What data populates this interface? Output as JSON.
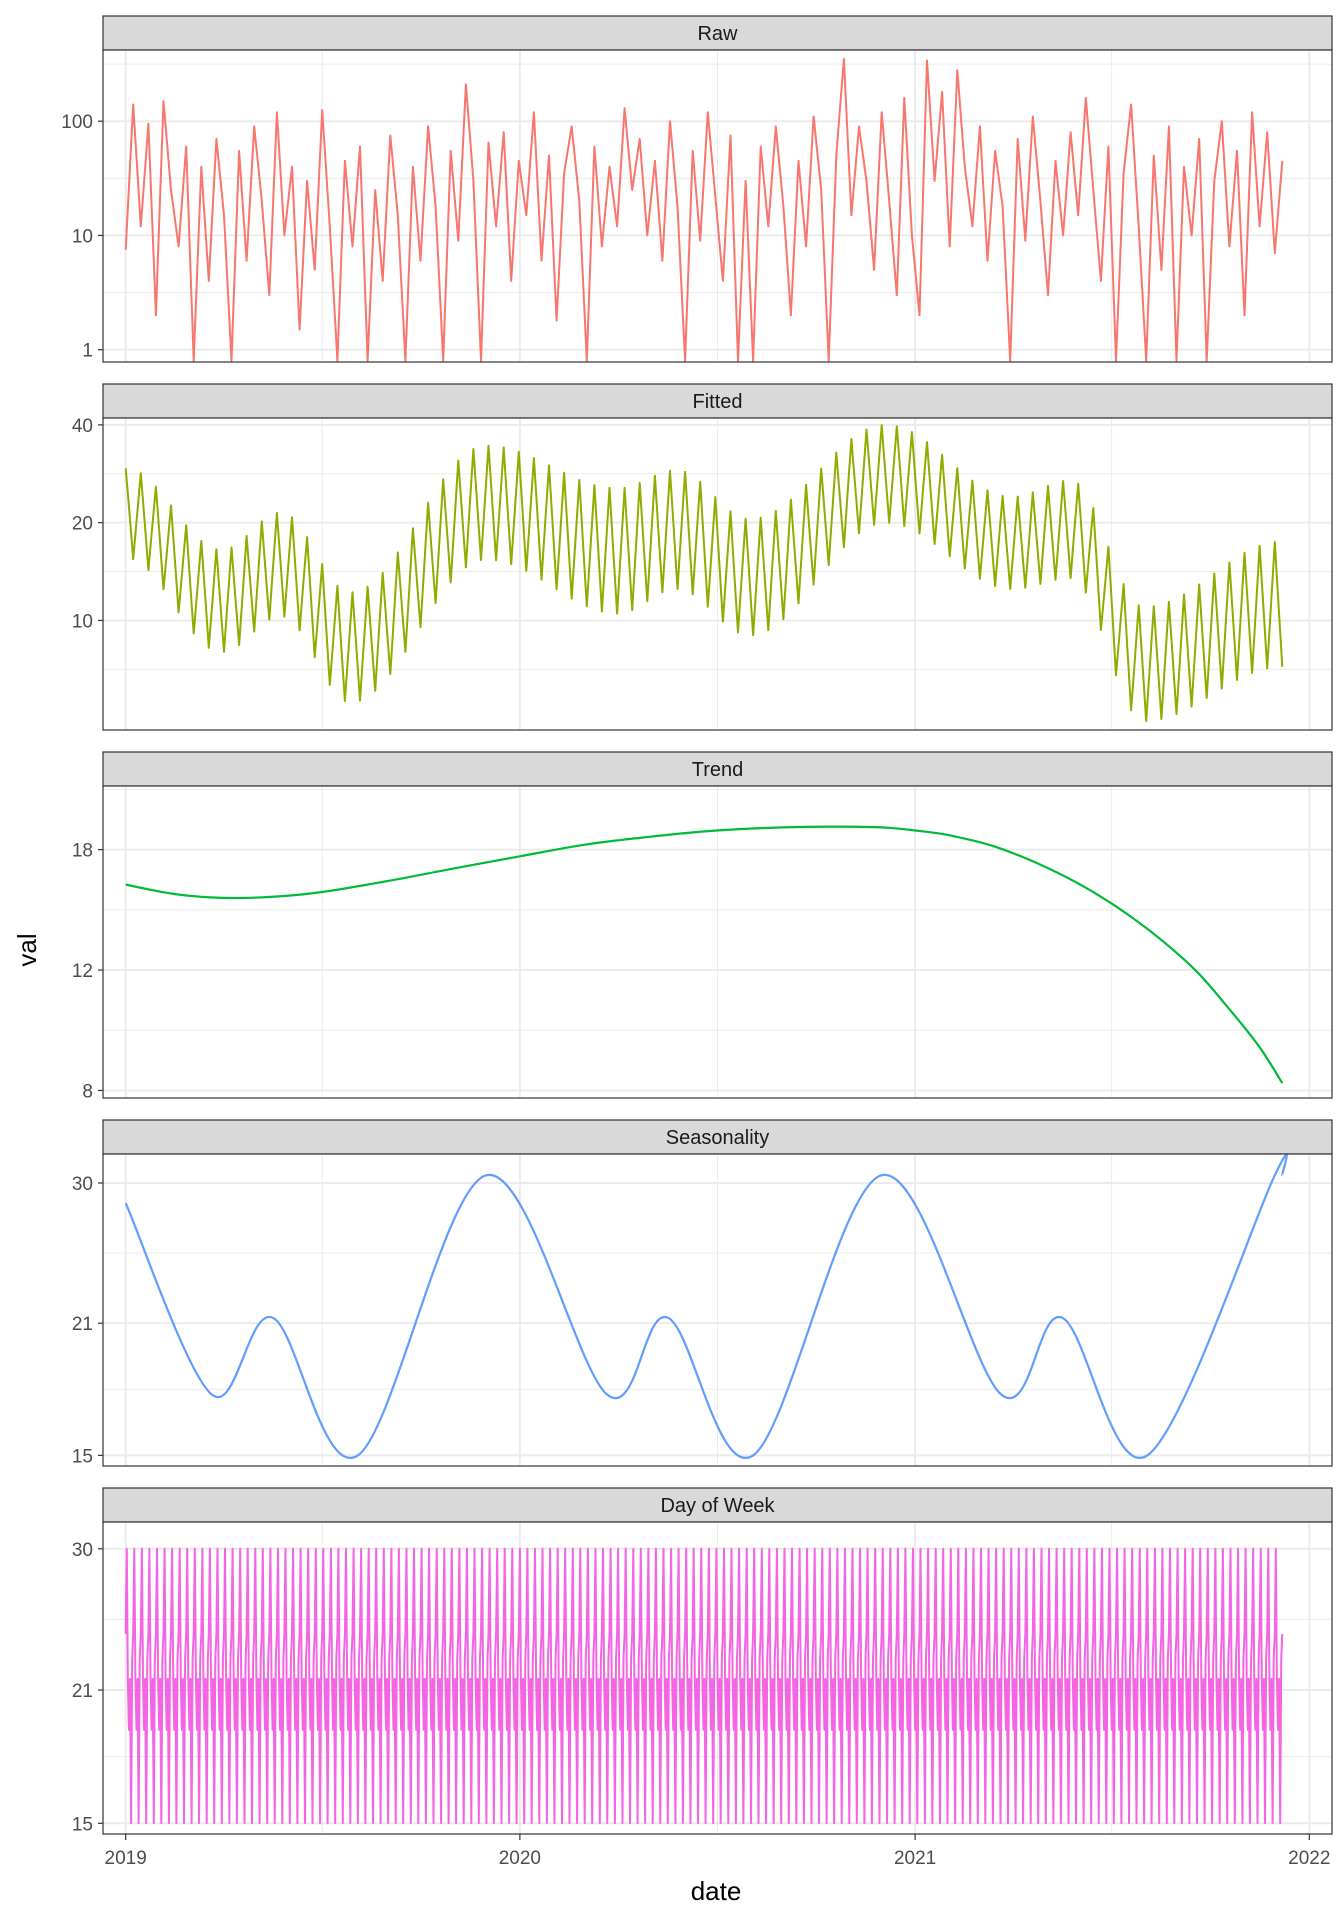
{
  "figure": {
    "xlabel": "date",
    "ylabel": "val",
    "x_tick_labels": [
      "2019",
      "2020",
      "2021",
      "2022"
    ]
  },
  "chart_data": [
    {
      "type": "line",
      "title": "Raw",
      "y_scale": "log10",
      "ylim": [
        0.78,
        420
      ],
      "y_ticks": [
        1,
        10,
        100
      ],
      "y_tick_labels": [
        "1",
        "10",
        "100"
      ],
      "x_range": [
        "2018-12-11",
        "2022-01-22"
      ],
      "series": [
        {
          "color": "#F8766D",
          "points": [
            [
              "2019-01-01",
              7.5
            ],
            [
              "2019-01-08",
              140
            ],
            [
              "2019-01-15",
              12
            ],
            [
              "2019-01-22",
              95
            ],
            [
              "2019-01-29",
              2
            ],
            [
              "2019-02-05",
              150
            ],
            [
              "2019-02-12",
              25
            ],
            [
              "2019-02-19",
              8
            ],
            [
              "2019-02-26",
              60
            ],
            [
              "2019-03-05",
              0.8
            ],
            [
              "2019-03-12",
              40
            ],
            [
              "2019-03-19",
              4
            ],
            [
              "2019-03-26",
              70
            ],
            [
              "2019-04-02",
              15
            ],
            [
              "2019-04-09",
              0.8
            ],
            [
              "2019-04-16",
              55
            ],
            [
              "2019-04-23",
              6
            ],
            [
              "2019-04-30",
              90
            ],
            [
              "2019-05-07",
              20
            ],
            [
              "2019-05-14",
              3
            ],
            [
              "2019-05-21",
              120
            ],
            [
              "2019-05-28",
              10
            ],
            [
              "2019-06-04",
              40
            ],
            [
              "2019-06-11",
              1.5
            ],
            [
              "2019-06-18",
              30
            ],
            [
              "2019-06-25",
              5
            ],
            [
              "2019-07-02",
              125
            ],
            [
              "2019-07-09",
              12
            ],
            [
              "2019-07-16",
              0.8
            ],
            [
              "2019-07-23",
              45
            ],
            [
              "2019-07-30",
              8
            ],
            [
              "2019-08-06",
              60
            ],
            [
              "2019-08-13",
              0.8
            ],
            [
              "2019-08-20",
              25
            ],
            [
              "2019-08-27",
              4
            ],
            [
              "2019-09-03",
              75
            ],
            [
              "2019-09-10",
              15
            ],
            [
              "2019-09-17",
              0.8
            ],
            [
              "2019-09-24",
              40
            ],
            [
              "2019-10-01",
              6
            ],
            [
              "2019-10-08",
              90
            ],
            [
              "2019-10-15",
              18
            ],
            [
              "2019-10-22",
              0.8
            ],
            [
              "2019-10-29",
              55
            ],
            [
              "2019-11-05",
              9
            ],
            [
              "2019-11-12",
              210
            ],
            [
              "2019-11-19",
              30
            ],
            [
              "2019-11-26",
              0.8
            ],
            [
              "2019-12-03",
              65
            ],
            [
              "2019-12-10",
              12
            ],
            [
              "2019-12-17",
              80
            ],
            [
              "2019-12-24",
              4
            ],
            [
              "2019-12-31",
              45
            ],
            [
              "2020-01-07",
              15
            ],
            [
              "2020-01-14",
              120
            ],
            [
              "2020-01-21",
              6
            ],
            [
              "2020-01-28",
              50
            ],
            [
              "2020-02-04",
              1.8
            ],
            [
              "2020-02-11",
              35
            ],
            [
              "2020-02-18",
              90
            ],
            [
              "2020-02-25",
              20
            ],
            [
              "2020-03-03",
              0.8
            ],
            [
              "2020-03-10",
              60
            ],
            [
              "2020-03-17",
              8
            ],
            [
              "2020-03-24",
              40
            ],
            [
              "2020-03-31",
              12
            ],
            [
              "2020-04-07",
              130
            ],
            [
              "2020-04-14",
              25
            ],
            [
              "2020-04-21",
              70
            ],
            [
              "2020-04-28",
              10
            ],
            [
              "2020-05-05",
              45
            ],
            [
              "2020-05-12",
              6
            ],
            [
              "2020-05-19",
              100
            ],
            [
              "2020-05-26",
              18
            ],
            [
              "2020-06-02",
              0.8
            ],
            [
              "2020-06-09",
              55
            ],
            [
              "2020-06-16",
              9
            ],
            [
              "2020-06-23",
              120
            ],
            [
              "2020-06-30",
              22
            ],
            [
              "2020-07-07",
              4
            ],
            [
              "2020-07-14",
              75
            ],
            [
              "2020-07-21",
              0.8
            ],
            [
              "2020-07-28",
              30
            ],
            [
              "2020-08-04",
              0.8
            ],
            [
              "2020-08-11",
              60
            ],
            [
              "2020-08-18",
              12
            ],
            [
              "2020-08-25",
              90
            ],
            [
              "2020-09-01",
              18
            ],
            [
              "2020-09-08",
              2
            ],
            [
              "2020-09-15",
              45
            ],
            [
              "2020-09-22",
              8
            ],
            [
              "2020-09-29",
              110
            ],
            [
              "2020-10-06",
              25
            ],
            [
              "2020-10-13",
              0.8
            ],
            [
              "2020-10-20",
              50
            ],
            [
              "2020-10-27",
              350
            ],
            [
              "2020-11-03",
              15
            ],
            [
              "2020-11-10",
              90
            ],
            [
              "2020-11-17",
              30
            ],
            [
              "2020-11-24",
              5
            ],
            [
              "2020-12-01",
              120
            ],
            [
              "2020-12-08",
              20
            ],
            [
              "2020-12-15",
              3
            ],
            [
              "2020-12-22",
              160
            ],
            [
              "2020-12-29",
              10
            ],
            [
              "2021-01-05",
              2
            ],
            [
              "2021-01-12",
              340
            ],
            [
              "2021-01-19",
              30
            ],
            [
              "2021-01-26",
              180
            ],
            [
              "2021-02-02",
              8
            ],
            [
              "2021-02-09",
              280
            ],
            [
              "2021-02-16",
              40
            ],
            [
              "2021-02-23",
              12
            ],
            [
              "2021-03-02",
              90
            ],
            [
              "2021-03-09",
              6
            ],
            [
              "2021-03-16",
              55
            ],
            [
              "2021-03-23",
              18
            ],
            [
              "2021-03-30",
              0.8
            ],
            [
              "2021-04-06",
              70
            ],
            [
              "2021-04-13",
              9
            ],
            [
              "2021-04-20",
              110
            ],
            [
              "2021-04-27",
              20
            ],
            [
              "2021-05-04",
              3
            ],
            [
              "2021-05-11",
              45
            ],
            [
              "2021-05-18",
              10
            ],
            [
              "2021-05-25",
              80
            ],
            [
              "2021-06-01",
              15
            ],
            [
              "2021-06-08",
              160
            ],
            [
              "2021-06-15",
              25
            ],
            [
              "2021-06-22",
              4
            ],
            [
              "2021-06-29",
              60
            ],
            [
              "2021-07-06",
              0.8
            ],
            [
              "2021-07-13",
              35
            ],
            [
              "2021-07-20",
              140
            ],
            [
              "2021-07-27",
              12
            ],
            [
              "2021-08-03",
              0.8
            ],
            [
              "2021-08-10",
              50
            ],
            [
              "2021-08-17",
              5
            ],
            [
              "2021-08-24",
              90
            ],
            [
              "2021-08-31",
              0.8
            ],
            [
              "2021-09-07",
              40
            ],
            [
              "2021-09-14",
              10
            ],
            [
              "2021-09-21",
              70
            ],
            [
              "2021-09-28",
              0.8
            ],
            [
              "2021-10-05",
              30
            ],
            [
              "2021-10-12",
              100
            ],
            [
              "2021-10-19",
              8
            ],
            [
              "2021-10-26",
              55
            ],
            [
              "2021-11-02",
              2
            ],
            [
              "2021-11-09",
              120
            ],
            [
              "2021-11-16",
              12
            ],
            [
              "2021-11-23",
              80
            ],
            [
              "2021-11-30",
              7
            ],
            [
              "2021-12-07",
              45
            ]
          ]
        }
      ]
    },
    {
      "type": "line",
      "title": "Fitted",
      "y_scale": "log10",
      "ylim": [
        4.6,
        42
      ],
      "y_ticks": [
        10,
        20,
        40
      ],
      "y_tick_labels": [
        "10",
        "20",
        "40"
      ],
      "x_range": [
        "2018-12-11",
        "2022-01-22"
      ],
      "series": [
        {
          "color": "#93AA00",
          "oscillation_period_days": 7,
          "band_points": [
            [
              "2019-01-01",
              15.6,
              29.4
            ],
            [
              "2019-03-31",
              8.0,
              16.5
            ],
            [
              "2019-05-25",
              10.3,
              21.5
            ],
            [
              "2019-07-28",
              5.6,
              12.2
            ],
            [
              "2019-12-01",
              15.4,
              34.5
            ],
            [
              "2020-04-01",
              10.5,
              25.5
            ],
            [
              "2020-05-25",
              12.5,
              29.0
            ],
            [
              "2020-08-01",
              9.0,
              20.5
            ],
            [
              "2020-12-05",
              20.0,
              40.0
            ],
            [
              "2021-04-01",
              12.5,
              24.0
            ],
            [
              "2021-05-25",
              13.5,
              27.0
            ],
            [
              "2021-08-01",
              4.9,
              11.0
            ],
            [
              "2021-12-07",
              7.2,
              17.5
            ]
          ]
        }
      ]
    },
    {
      "type": "line",
      "title": "Trend",
      "y_scale": "log10",
      "ylim": [
        7.8,
        22.3
      ],
      "y_ticks": [
        8,
        12,
        18
      ],
      "y_tick_labels": [
        "8",
        "12",
        "18"
      ],
      "x_range": [
        "2018-12-11",
        "2022-01-22"
      ],
      "series": [
        {
          "color": "#00BA38",
          "points": [
            [
              "2019-01-01",
              16.0
            ],
            [
              "2019-02-15",
              15.5
            ],
            [
              "2019-04-01",
              15.3
            ],
            [
              "2019-05-15",
              15.35
            ],
            [
              "2019-07-01",
              15.6
            ],
            [
              "2019-09-01",
              16.2
            ],
            [
              "2019-11-01",
              16.9
            ],
            [
              "2020-01-01",
              17.6
            ],
            [
              "2020-03-01",
              18.3
            ],
            [
              "2020-05-01",
              18.8
            ],
            [
              "2020-07-01",
              19.2
            ],
            [
              "2020-09-01",
              19.4
            ],
            [
              "2020-10-15",
              19.45
            ],
            [
              "2020-12-01",
              19.4
            ],
            [
              "2021-01-01",
              19.2
            ],
            [
              "2021-02-01",
              18.9
            ],
            [
              "2021-03-15",
              18.2
            ],
            [
              "2021-05-01",
              17.0
            ],
            [
              "2021-06-15",
              15.6
            ],
            [
              "2021-08-01",
              13.9
            ],
            [
              "2021-09-15",
              12.1
            ],
            [
              "2021-10-15",
              10.7
            ],
            [
              "2021-11-15",
              9.3
            ],
            [
              "2021-12-07",
              8.2
            ]
          ]
        }
      ]
    },
    {
      "type": "line",
      "title": "Seasonality",
      "y_scale": "log10",
      "ylim": [
        14.6,
        32.3
      ],
      "y_ticks": [
        15,
        21,
        30
      ],
      "y_tick_labels": [
        "15",
        "21",
        "30"
      ],
      "x_range": [
        "2018-12-11",
        "2022-01-22"
      ],
      "series": [
        {
          "color": "#619CFF",
          "points": [
            [
              "2019-01-01",
              28.5
            ],
            [
              "2019-03-22",
              17.5
            ],
            [
              "2019-05-17",
              21.3
            ],
            [
              "2019-08-04",
              15.0
            ],
            [
              "2019-12-01",
              30.6
            ],
            [
              "2020-03-22",
              17.5
            ],
            [
              "2020-05-17",
              21.3
            ],
            [
              "2020-08-04",
              15.0
            ],
            [
              "2020-12-01",
              30.6
            ],
            [
              "2021-03-22",
              17.5
            ],
            [
              "2021-05-17",
              21.3
            ],
            [
              "2021-08-04",
              15.0
            ],
            [
              "2021-11-30",
              30.6
            ],
            [
              "2021-12-07",
              30.6
            ]
          ]
        }
      ]
    },
    {
      "type": "line",
      "title": "Day of Week",
      "y_scale": "log10",
      "ylim": [
        14.6,
        32.1
      ],
      "y_ticks": [
        15,
        21,
        30
      ],
      "y_tick_labels": [
        "15",
        "21",
        "30"
      ],
      "x_range": [
        "2018-12-11",
        "2022-01-22"
      ],
      "series": [
        {
          "color": "#F564E3",
          "period_days": 7,
          "weekly_values": [
            24.2,
            30.0,
            21.7,
            19.0,
            21.6,
            15.0,
            22.7
          ]
        }
      ],
      "start": "2019-01-01",
      "end": "2021-12-07"
    }
  ]
}
